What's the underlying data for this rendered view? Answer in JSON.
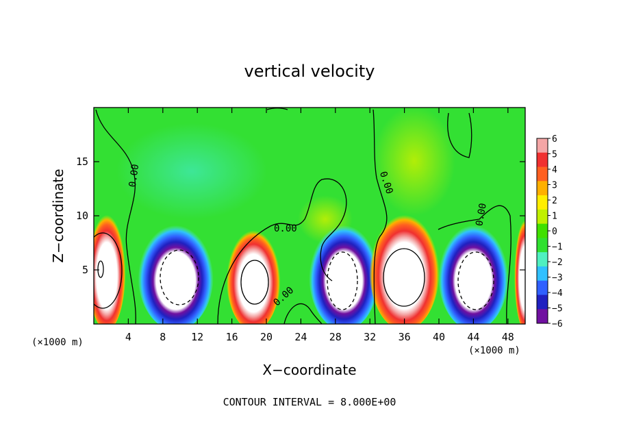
{
  "chart_data": {
    "type": "heatmap",
    "title": "vertical velocity",
    "xlabel": "X−coordinate",
    "ylabel": "Z−coordinate",
    "x_unit_left": "(×1000 m)",
    "x_unit_right": "(×1000 m)",
    "xlim": [
      0,
      50
    ],
    "ylim": [
      0,
      20
    ],
    "x_ticks": [
      4,
      8,
      12,
      16,
      20,
      24,
      28,
      32,
      36,
      40,
      44,
      48
    ],
    "y_ticks": [
      5,
      10,
      15
    ],
    "colorbar": {
      "ticks": [
        "6",
        "5",
        "4",
        "3",
        "2",
        "1",
        "0",
        "−1",
        "−2",
        "−3",
        "−4",
        "−5",
        "−6"
      ],
      "range": [
        -6,
        6
      ],
      "colors": [
        "#f4a6a6",
        "#f03030",
        "#ff6020",
        "#ffb000",
        "#ffee00",
        "#c0f000",
        "#40e000",
        "#30e030",
        "#50f0c0",
        "#30c0ff",
        "#3060ff",
        "#2020c0",
        "#7010a0"
      ]
    },
    "contour_labels": [
      "0.00",
      "0.00",
      "0.00",
      "0.00",
      "0.00",
      "0.00"
    ],
    "background_color": "#33e033",
    "contour_interval_label": "CONTOUR INTERVAL = 8.000E+00",
    "cells": [
      {
        "x": 1.5,
        "w": 3.5,
        "zmax": 10.5,
        "sign": "up",
        "peak": 6
      },
      {
        "x": 9.5,
        "w": 7.0,
        "zmax": 9.5,
        "sign": "down",
        "peak": -6
      },
      {
        "x": 18.5,
        "w": 5.0,
        "zmax": 9.0,
        "sign": "up",
        "peak": 6
      },
      {
        "x": 29.0,
        "w": 6.5,
        "zmax": 9.5,
        "sign": "down",
        "peak": -6
      },
      {
        "x": 36.0,
        "w": 6.5,
        "zmax": 10.5,
        "sign": "up",
        "peak": 6
      },
      {
        "x": 44.0,
        "w": 6.5,
        "zmax": 9.5,
        "sign": "down",
        "peak": -6
      },
      {
        "x": 50.0,
        "w": 2.0,
        "zmax": 10.0,
        "sign": "up",
        "peak": 6
      }
    ]
  }
}
